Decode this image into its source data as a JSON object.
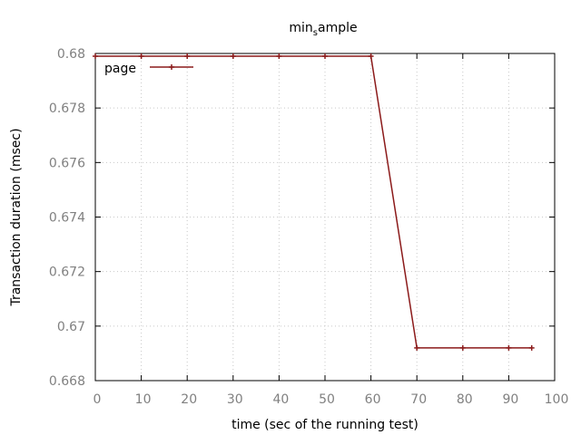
{
  "chart_data": {
    "type": "line",
    "title": "min_sample",
    "title_parts": {
      "base": "min",
      "subscript": "s",
      "rest": "ample"
    },
    "xlabel": "time (sec of the running test)",
    "ylabel": "Transaction duration (msec)",
    "xlim": [
      0,
      100
    ],
    "ylim": [
      0.668,
      0.68
    ],
    "xticks": [
      0,
      10,
      20,
      30,
      40,
      50,
      60,
      70,
      80,
      90,
      100
    ],
    "xtick_labels": [
      "0",
      "10",
      "20",
      "30",
      "40",
      "50",
      "60",
      "70",
      "80",
      "90",
      "100"
    ],
    "yticks": [
      0.668,
      0.67,
      0.672,
      0.674,
      0.676,
      0.678,
      0.68
    ],
    "ytick_labels": [
      "0.668",
      "0.67",
      "0.672",
      "0.674",
      "0.676",
      "0.678",
      "0.68"
    ],
    "grid": true,
    "legend_position": "top-left",
    "series": [
      {
        "name": "page",
        "color": "#8b1a1a",
        "x": [
          0,
          10,
          20,
          30,
          40,
          50,
          60,
          70,
          80,
          90,
          95
        ],
        "y": [
          0.6799,
          0.6799,
          0.6799,
          0.6799,
          0.6799,
          0.6799,
          0.6799,
          0.6692,
          0.6692,
          0.6692,
          0.6692
        ]
      }
    ]
  }
}
